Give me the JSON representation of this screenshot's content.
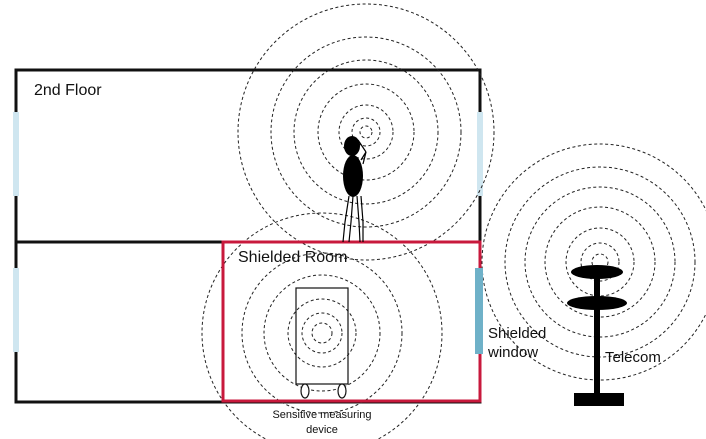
{
  "labels": {
    "floor": "2nd Floor",
    "shielded_room": "Shielded Room",
    "shielded_window_1": "Shielded",
    "shielded_window_2": "window",
    "telecom": "Telecom",
    "device_1": "Sensitive measuring",
    "device_2": "device"
  },
  "colors": {
    "building_outline": "#111111",
    "shielded_room_outline": "#c8193c",
    "window": "#cfe6f0",
    "shielded_window": "#6fb1c8",
    "figure": "#000000"
  },
  "icons": {
    "person": "person-with-phone-icon",
    "tower": "telecom-tower-icon",
    "device": "measuring-device-icon"
  }
}
